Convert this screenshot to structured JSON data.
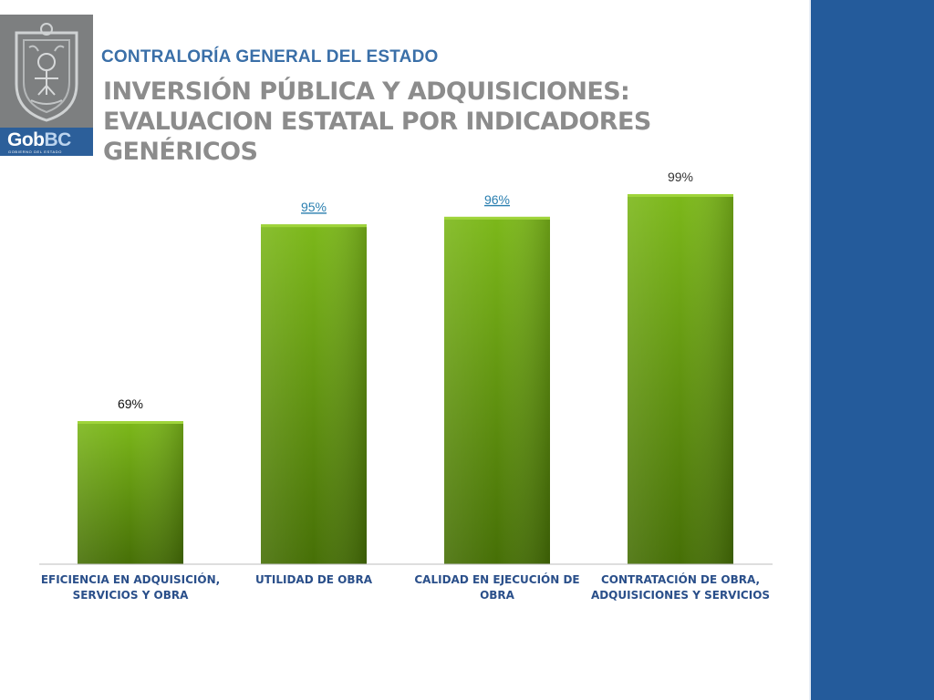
{
  "header": {
    "org_name": "CONTRALORÍA GENERAL DEL ESTADO",
    "title_lines": [
      "INVERSIÓN PÚBLICA Y ADQUISICIONES:",
      "EVALUACION ESTATAL POR  INDICADORES",
      "GENÉRICOS"
    ]
  },
  "logo": {
    "brand_main": "Gob",
    "brand_accent": "BC",
    "brand_sub": "GOBIERNO DEL ESTADO",
    "seal_icon": "state-seal-icon"
  },
  "colors": {
    "bar_top": "#7cb81a",
    "bar_bottom": "#466f06",
    "category_text": "#2a4f8a",
    "side_band": "#245b9b",
    "link_label": "#2a7fb0"
  },
  "chart_data": {
    "type": "bar",
    "title": "",
    "xlabel": "",
    "ylabel": "",
    "ylim": [
      0,
      100
    ],
    "grid": false,
    "categories": [
      [
        "EFICIENCIA EN ADQUISICIÓN,",
        "SERVICIOS Y OBRA"
      ],
      [
        "UTILIDAD DE OBRA"
      ],
      [
        "CALIDAD EN EJECUCIÓN DE",
        "OBRA"
      ],
      [
        "CONTRATACIÓN DE OBRA,",
        "ADQUISICIONES Y SERVICIOS"
      ]
    ],
    "values": [
      69,
      95,
      96,
      99
    ],
    "data_labels": [
      "69%",
      "95%",
      "96%",
      "99%"
    ]
  }
}
